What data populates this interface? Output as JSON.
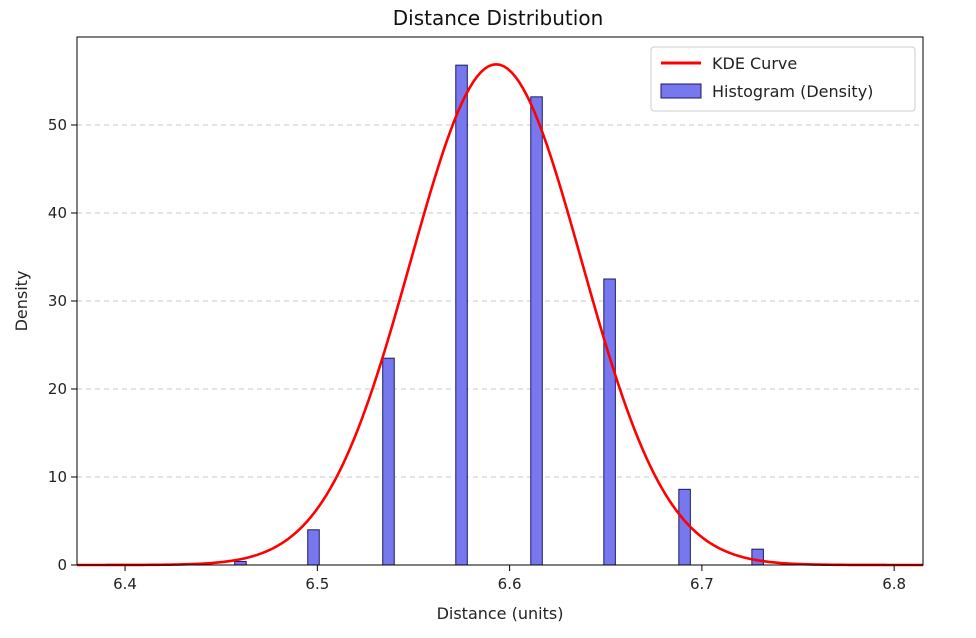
{
  "chart_data": {
    "type": "bar",
    "title": "Distance Distribution",
    "xlabel": "Distance (units)",
    "ylabel": "Density",
    "xlim": [
      6.375,
      6.815
    ],
    "ylim": [
      0,
      60
    ],
    "x_ticks": [
      6.4,
      6.5,
      6.6,
      6.7,
      6.8
    ],
    "x_tick_labels": [
      "6.4",
      "6.5",
      "6.6",
      "6.7",
      "6.8"
    ],
    "y_ticks": [
      0,
      10,
      20,
      30,
      40,
      50
    ],
    "y_tick_labels": [
      "0",
      "10",
      "20",
      "30",
      "40",
      "50"
    ],
    "grid": "y-dashed",
    "legend_position": "top-right",
    "series": [
      {
        "name": "KDE Curve",
        "kind": "line",
        "color": "#ff0000",
        "mean": 6.593,
        "peak": 56.9,
        "sd": 0.0445,
        "x_range": [
          6.375,
          6.815
        ]
      },
      {
        "name": "Histogram (Density)",
        "kind": "bar",
        "color": "#7777ee",
        "edge_color": "#1a1a66",
        "bar_width": 0.006,
        "x": [
          6.46,
          6.498,
          6.537,
          6.575,
          6.614,
          6.652,
          6.691,
          6.729
        ],
        "values": [
          0.4,
          4.0,
          23.5,
          56.8,
          53.2,
          32.5,
          8.6,
          1.8
        ]
      }
    ]
  }
}
